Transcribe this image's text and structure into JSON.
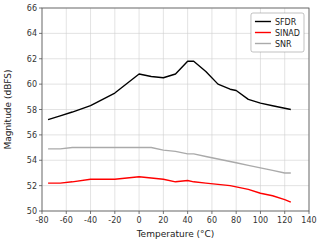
{
  "chart_data": {
    "type": "line",
    "xlabel": "Temperature (°C)",
    "ylabel": "Magnitude (dBFS)",
    "x": [
      -75,
      -65,
      -55,
      -40,
      -20,
      0,
      10,
      20,
      30,
      40,
      45,
      55,
      65,
      75,
      80,
      90,
      100,
      110,
      120,
      125
    ],
    "series": [
      {
        "name": "SFDR",
        "color": "#000000",
        "values": [
          57.2,
          57.5,
          57.8,
          58.3,
          59.3,
          60.8,
          60.6,
          60.5,
          60.8,
          61.8,
          61.8,
          61.0,
          60.0,
          59.6,
          59.5,
          58.8,
          58.5,
          58.3,
          58.1,
          58.0
        ]
      },
      {
        "name": "SINAD",
        "color": "#ff0000",
        "values": [
          52.2,
          52.2,
          52.3,
          52.5,
          52.5,
          52.7,
          52.6,
          52.5,
          52.3,
          52.4,
          52.3,
          52.2,
          52.1,
          52.0,
          51.9,
          51.7,
          51.4,
          51.2,
          50.9,
          50.7
        ]
      },
      {
        "name": "SNR",
        "color": "#aaaaaa",
        "values": [
          54.9,
          54.9,
          55.0,
          55.0,
          55.0,
          55.0,
          55.0,
          54.8,
          54.7,
          54.5,
          54.5,
          54.3,
          54.1,
          53.9,
          53.8,
          53.6,
          53.4,
          53.2,
          53.0,
          53.0
        ]
      }
    ],
    "xlim": [
      -80,
      140
    ],
    "ylim": [
      50,
      66
    ],
    "xticks": [
      -80,
      -60,
      -40,
      -20,
      0,
      20,
      40,
      60,
      80,
      100,
      120,
      140
    ],
    "yticks": [
      50,
      52,
      54,
      56,
      58,
      60,
      62,
      64,
      66
    ],
    "grid": true,
    "legend": "upper right"
  }
}
